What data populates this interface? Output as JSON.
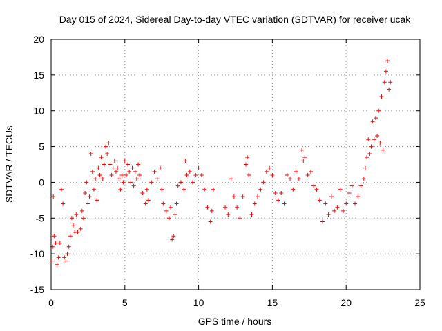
{
  "chart_data": {
    "type": "scatter",
    "title": "Day 015 of 2024, Sidereal Day-to-day VTEC variation (SDTVAR) for receiver ucak",
    "xlabel": "GPS time / hours",
    "ylabel": "SDTVAR / TECUs",
    "xlim": [
      0,
      25
    ],
    "ylim": [
      -15,
      20
    ],
    "x_ticks": [
      0,
      5,
      10,
      15,
      20,
      25
    ],
    "y_ticks": [
      -15,
      -10,
      -5,
      0,
      5,
      10,
      15,
      20
    ],
    "x_tick_labels": [
      "0",
      "5",
      "10",
      "15",
      "20",
      "25"
    ],
    "y_tick_labels": [
      "-15",
      "-10",
      "-5",
      "0",
      "5",
      "10",
      "15",
      "20"
    ],
    "grid": true,
    "marker": "+",
    "color": "#ff0000",
    "series": [
      {
        "name": "SDTVAR",
        "points": [
          [
            0.0,
            -11.0
          ],
          [
            0.1,
            -9.0
          ],
          [
            0.15,
            -2.0
          ],
          [
            0.2,
            -7.5
          ],
          [
            0.3,
            -8.5
          ],
          [
            0.4,
            -11.5
          ],
          [
            0.5,
            -10.5
          ],
          [
            0.6,
            -8.5
          ],
          [
            0.7,
            -1.0
          ],
          [
            0.8,
            -3.0
          ],
          [
            0.9,
            -10.5
          ],
          [
            1.0,
            -11.0
          ],
          [
            1.1,
            -10.0
          ],
          [
            1.2,
            -9.0
          ],
          [
            1.3,
            -7.5
          ],
          [
            1.4,
            -5.0
          ],
          [
            1.5,
            -6.0
          ],
          [
            1.6,
            -7.0
          ],
          [
            1.7,
            -4.5
          ],
          [
            1.8,
            -7.0
          ],
          [
            2.0,
            -6.5
          ],
          [
            2.1,
            -4.0
          ],
          [
            2.2,
            -5.0
          ],
          [
            2.3,
            -1.5
          ],
          [
            2.4,
            0.0
          ],
          [
            2.5,
            -3.0
          ],
          [
            2.6,
            -2.0
          ],
          [
            2.7,
            4.0
          ],
          [
            2.8,
            1.5
          ],
          [
            2.9,
            -1.0
          ],
          [
            3.0,
            0.5
          ],
          [
            3.1,
            -2.5
          ],
          [
            3.2,
            2.0
          ],
          [
            3.3,
            1.0
          ],
          [
            3.4,
            3.5
          ],
          [
            3.5,
            0.5
          ],
          [
            3.6,
            2.5
          ],
          [
            3.7,
            5.0
          ],
          [
            3.8,
            4.0
          ],
          [
            3.9,
            5.5
          ],
          [
            4.0,
            2.5
          ],
          [
            4.1,
            1.0
          ],
          [
            4.2,
            2.0
          ],
          [
            4.3,
            3.0
          ],
          [
            4.4,
            1.5
          ],
          [
            4.5,
            2.0
          ],
          [
            4.6,
            0.5
          ],
          [
            4.7,
            -1.0
          ],
          [
            4.8,
            1.0
          ],
          [
            4.9,
            0.0
          ],
          [
            5.0,
            3.0
          ],
          [
            5.1,
            1.0
          ],
          [
            5.2,
            2.5
          ],
          [
            5.3,
            1.5
          ],
          [
            5.4,
            0.0
          ],
          [
            5.5,
            2.0
          ],
          [
            5.6,
            -0.5
          ],
          [
            5.7,
            1.5
          ],
          [
            5.8,
            0.5
          ],
          [
            5.9,
            2.5
          ],
          [
            6.0,
            1.0
          ],
          [
            6.2,
            -1.5
          ],
          [
            6.4,
            -3.0
          ],
          [
            6.5,
            -1.0
          ],
          [
            6.6,
            -2.5
          ],
          [
            6.8,
            0.0
          ],
          [
            7.0,
            1.5
          ],
          [
            7.2,
            0.5
          ],
          [
            7.4,
            2.0
          ],
          [
            7.5,
            -1.0
          ],
          [
            7.6,
            -3.0
          ],
          [
            7.8,
            -4.0
          ],
          [
            8.0,
            -5.0
          ],
          [
            8.1,
            -3.5
          ],
          [
            8.2,
            -8.0
          ],
          [
            8.3,
            -7.5
          ],
          [
            8.4,
            -4.5
          ],
          [
            8.5,
            -3.0
          ],
          [
            8.6,
            -0.5
          ],
          [
            8.8,
            0.0
          ],
          [
            9.0,
            -1.0
          ],
          [
            9.1,
            3.0
          ],
          [
            9.2,
            1.0
          ],
          [
            9.4,
            1.5
          ],
          [
            9.6,
            0.0
          ],
          [
            9.8,
            1.0
          ],
          [
            10.0,
            2.0
          ],
          [
            10.2,
            1.0
          ],
          [
            10.4,
            -1.0
          ],
          [
            10.6,
            -3.5
          ],
          [
            10.8,
            -5.5
          ],
          [
            10.9,
            -4.0
          ],
          [
            11.0,
            -1.0
          ],
          [
            11.8,
            -3.5
          ],
          [
            12.0,
            -4.5
          ],
          [
            12.2,
            0.5
          ],
          [
            12.4,
            -2.0
          ],
          [
            12.6,
            -3.5
          ],
          [
            12.8,
            -5.0
          ],
          [
            13.0,
            -2.0
          ],
          [
            13.2,
            2.5
          ],
          [
            13.3,
            3.5
          ],
          [
            13.4,
            1.0
          ],
          [
            13.6,
            -4.5
          ],
          [
            13.8,
            -3.0
          ],
          [
            14.0,
            -2.0
          ],
          [
            14.2,
            -1.0
          ],
          [
            14.4,
            0.0
          ],
          [
            14.6,
            1.5
          ],
          [
            14.8,
            2.0
          ],
          [
            15.0,
            1.0
          ],
          [
            15.2,
            -1.5
          ],
          [
            15.4,
            -2.5
          ],
          [
            15.6,
            -1.5
          ],
          [
            15.8,
            -3.0
          ],
          [
            16.0,
            1.0
          ],
          [
            16.2,
            0.5
          ],
          [
            16.4,
            -1.0
          ],
          [
            16.6,
            1.5
          ],
          [
            16.8,
            0.5
          ],
          [
            17.0,
            4.5
          ],
          [
            17.1,
            3.0
          ],
          [
            17.2,
            3.5
          ],
          [
            17.4,
            1.0
          ],
          [
            17.6,
            1.5
          ],
          [
            17.8,
            -0.5
          ],
          [
            18.0,
            -1.0
          ],
          [
            18.2,
            -2.5
          ],
          [
            18.4,
            -5.5
          ],
          [
            18.6,
            -3.0
          ],
          [
            18.8,
            -4.5
          ],
          [
            19.0,
            -2.0
          ],
          [
            19.2,
            -4.0
          ],
          [
            19.4,
            -3.5
          ],
          [
            19.6,
            -1.0
          ],
          [
            19.8,
            -4.0
          ],
          [
            20.0,
            -3.0
          ],
          [
            20.2,
            -1.5
          ],
          [
            20.4,
            -0.5
          ],
          [
            20.6,
            -3.0
          ],
          [
            20.8,
            -2.0
          ],
          [
            21.0,
            -0.5
          ],
          [
            21.2,
            0.5
          ],
          [
            21.3,
            2.0
          ],
          [
            21.4,
            3.5
          ],
          [
            21.5,
            6.0
          ],
          [
            21.6,
            4.0
          ],
          [
            21.7,
            5.0
          ],
          [
            21.8,
            8.5
          ],
          [
            21.9,
            6.0
          ],
          [
            22.0,
            9.0
          ],
          [
            22.1,
            6.5
          ],
          [
            22.2,
            10.0
          ],
          [
            22.3,
            5.5
          ],
          [
            22.4,
            12.0
          ],
          [
            22.5,
            4.5
          ],
          [
            22.6,
            14.0
          ],
          [
            22.7,
            15.5
          ],
          [
            22.8,
            17.0
          ],
          [
            22.9,
            13.0
          ],
          [
            23.0,
            14.0
          ]
        ]
      }
    ]
  }
}
